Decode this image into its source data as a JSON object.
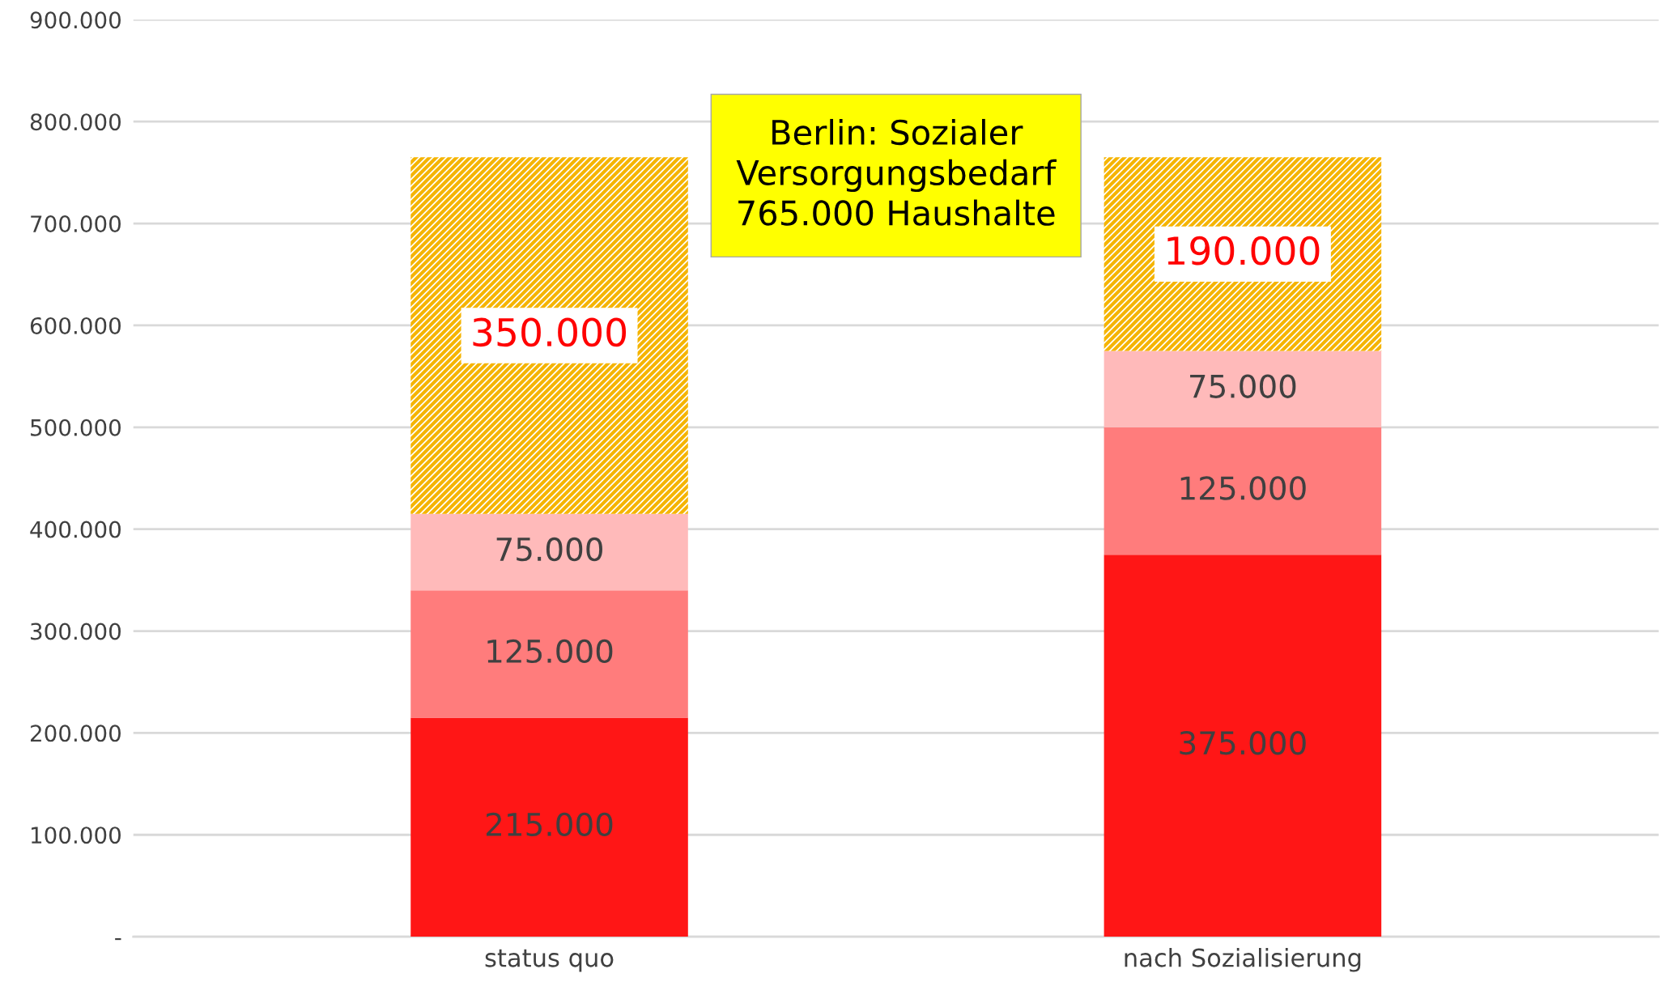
{
  "chart_data": {
    "type": "bar",
    "stacked": true,
    "categories": [
      "status quo",
      "nach Sozialisierung"
    ],
    "series": [
      {
        "color": "#ff1616",
        "values": [
          215000,
          375000
        ],
        "value_labels": [
          "215.000",
          "375.000"
        ]
      },
      {
        "color": "#ff7c7c",
        "values": [
          125000,
          125000
        ],
        "value_labels": [
          "125.000",
          "125.000"
        ]
      },
      {
        "color": "#ffbaba",
        "values": [
          75000,
          75000
        ],
        "value_labels": [
          "75.000",
          "75.000"
        ]
      },
      {
        "color": "#f5b400",
        "values": [
          350000,
          190000
        ],
        "value_labels": [
          "350.000",
          "190.000"
        ]
      }
    ],
    "ylim": [
      0,
      900000
    ],
    "yticks": [
      {
        "value": 0,
        "label": "-"
      },
      {
        "value": 100000,
        "label": "100.000"
      },
      {
        "value": 200000,
        "label": "200.000"
      },
      {
        "value": 300000,
        "label": "300.000"
      },
      {
        "value": 400000,
        "label": "400.000"
      },
      {
        "value": 500000,
        "label": "500.000"
      },
      {
        "value": 600000,
        "label": "600.000"
      },
      {
        "value": 700000,
        "label": "700.000"
      },
      {
        "value": 800000,
        "label": "800.000"
      },
      {
        "value": 900000,
        "label": "900.000"
      }
    ],
    "grid": "y",
    "legend": false,
    "annotations": [
      "Berlin: Sozialer\nVersorgungsbedarf",
      "765.000 Haushalte"
    ]
  }
}
